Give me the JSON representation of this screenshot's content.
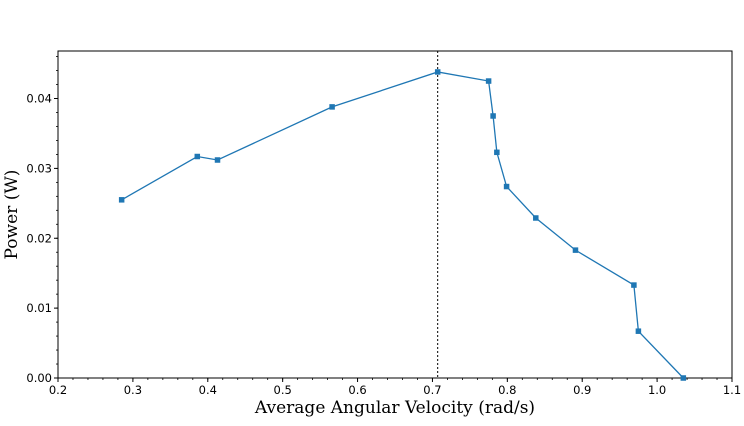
{
  "chart_data": {
    "type": "line",
    "title": "",
    "xlabel": "Average Angular Velocity (rad/s)",
    "ylabel": "Power (W)",
    "xlim": [
      0.2,
      1.1
    ],
    "ylim": [
      0.0,
      0.0468
    ],
    "xticks": [
      0.2,
      0.3,
      0.4,
      0.5,
      0.6,
      0.7,
      0.8,
      0.9,
      1.0,
      1.1
    ],
    "xtick_labels": [
      "0.2",
      "0.3",
      "0.4",
      "0.5",
      "0.6",
      "0.7",
      "0.8",
      "0.9",
      "1.0",
      "1.1"
    ],
    "yticks": [
      0.0,
      0.01,
      0.02,
      0.03,
      0.04
    ],
    "ytick_labels": [
      "0.00",
      "0.01",
      "0.02",
      "0.03",
      "0.04"
    ],
    "grid": false,
    "vline": {
      "x": 0.707,
      "style": "dotted",
      "color": "#000000"
    },
    "series": [
      {
        "color": "#1f77b4",
        "marker": "square",
        "x": [
          0.285,
          0.386,
          0.413,
          0.566,
          0.707,
          0.775,
          0.781,
          0.786,
          0.799,
          0.838,
          0.891,
          0.969,
          0.975,
          1.035
        ],
        "y": [
          0.0255,
          0.0317,
          0.0312,
          0.0388,
          0.0438,
          0.0425,
          0.0375,
          0.0323,
          0.0274,
          0.0229,
          0.0183,
          0.0133,
          0.0067,
          0.0
        ]
      }
    ]
  }
}
